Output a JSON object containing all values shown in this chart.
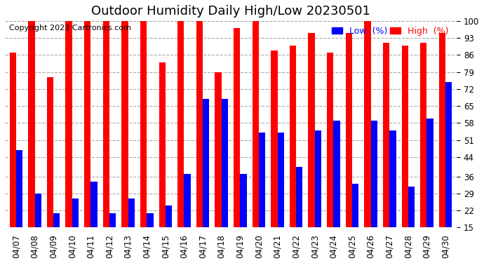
{
  "title": "Outdoor Humidity Daily High/Low 20230501",
  "copyright": "Copyright 2023 Cartronics.com",
  "legend_low": "Low  (%)",
  "legend_high": "High  (%)",
  "dates": [
    "04/07",
    "04/08",
    "04/09",
    "04/10",
    "04/11",
    "04/12",
    "04/13",
    "04/14",
    "04/15",
    "04/16",
    "04/17",
    "04/18",
    "04/19",
    "04/20",
    "04/21",
    "04/22",
    "04/23",
    "04/24",
    "04/25",
    "04/26",
    "04/27",
    "04/28",
    "04/29",
    "04/30"
  ],
  "high_values": [
    87,
    100,
    77,
    100,
    100,
    100,
    100,
    100,
    83,
    100,
    100,
    79,
    97,
    100,
    88,
    90,
    95,
    87,
    95,
    100,
    91,
    90,
    91,
    95
  ],
  "low_values": [
    47,
    29,
    21,
    27,
    34,
    21,
    27,
    21,
    24,
    37,
    68,
    68,
    37,
    54,
    54,
    40,
    55,
    59,
    33,
    59,
    55,
    32,
    60,
    75
  ],
  "bar_width": 0.35,
  "ylim_min": 15,
  "ylim_max": 101,
  "yticks": [
    15,
    22,
    29,
    36,
    44,
    51,
    58,
    65,
    72,
    79,
    86,
    93,
    100
  ],
  "grid_color": "#aaaaaa",
  "high_color": "#ff0000",
  "low_color": "#0000ff",
  "bg_color": "#ffffff",
  "title_fontsize": 13,
  "tick_fontsize": 8.5,
  "legend_fontsize": 9,
  "copyright_fontsize": 8
}
